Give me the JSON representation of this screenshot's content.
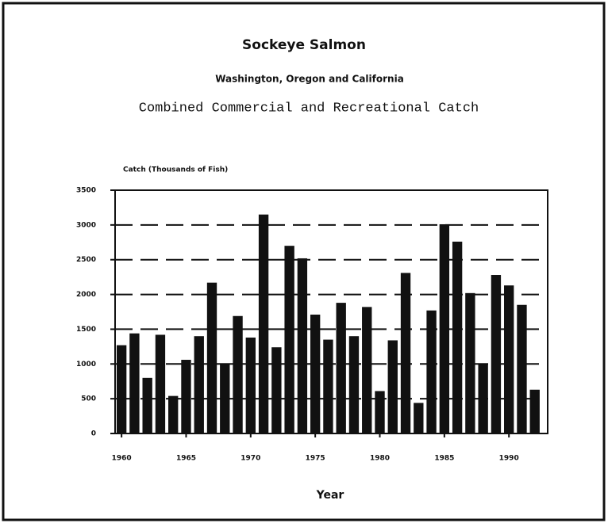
{
  "chart_data": {
    "type": "bar",
    "title": "Sockeye Salmon",
    "subtitle": "Washington, Oregon and California",
    "subtitle2": "Combined Commercial and Recreational Catch",
    "ylabel": "Catch (Thousands of Fish)",
    "xlabel": "Year",
    "x": [
      1960,
      1961,
      1962,
      1963,
      1964,
      1965,
      1966,
      1967,
      1968,
      1969,
      1970,
      1971,
      1972,
      1973,
      1974,
      1975,
      1976,
      1977,
      1978,
      1979,
      1980,
      1981,
      1982,
      1983,
      1984,
      1985,
      1986,
      1987,
      1988,
      1989,
      1990,
      1991,
      1992
    ],
    "values": [
      1270,
      1440,
      800,
      1420,
      540,
      1060,
      1400,
      2170,
      1000,
      1690,
      1380,
      3150,
      1240,
      2700,
      2520,
      1710,
      1350,
      1880,
      1400,
      1820,
      610,
      1340,
      2310,
      440,
      1770,
      3010,
      2760,
      2020,
      1000,
      2280,
      2130,
      1850,
      630
    ],
    "color": "#111111",
    "xlim": [
      1959.5,
      1993
    ],
    "xticks": [
      1960,
      1965,
      1970,
      1975,
      1980,
      1985,
      1990
    ],
    "ylim": [
      0,
      3500
    ],
    "yticks": [
      0,
      500,
      1000,
      1500,
      2000,
      2500,
      3000,
      3500
    ],
    "grid": true
  }
}
